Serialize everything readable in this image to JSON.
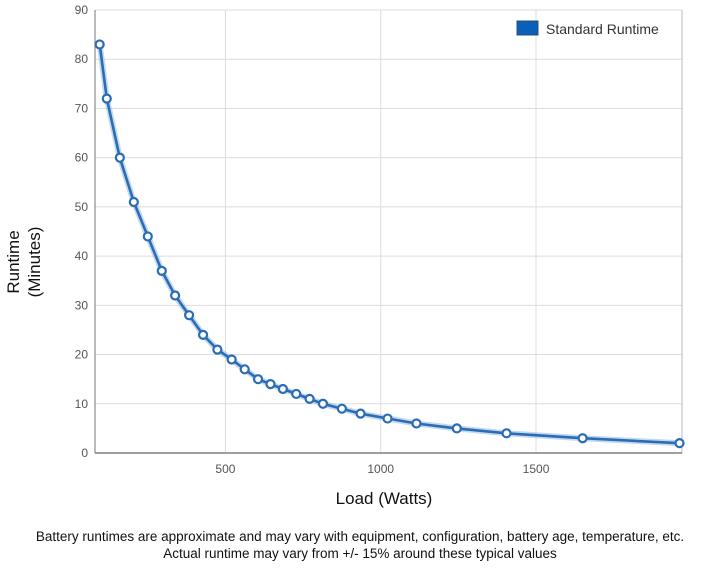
{
  "chart_data": {
    "type": "line",
    "title": "",
    "xlabel": "Load (Watts)",
    "ylabel_lines": [
      "Runtime",
      "(Minutes)"
    ],
    "xlim": [
      80,
      1970
    ],
    "ylim": [
      0,
      90
    ],
    "x_ticks": [
      500,
      1000,
      1500
    ],
    "y_ticks": [
      0,
      10,
      20,
      30,
      40,
      50,
      60,
      70,
      80,
      90
    ],
    "grid": true,
    "legend_position": "top-right",
    "series": [
      {
        "name": "Standard Runtime",
        "color": "#2a6db5",
        "points": [
          [
            95,
            83
          ],
          [
            118,
            72
          ],
          [
            160,
            60
          ],
          [
            205,
            51
          ],
          [
            250,
            44
          ],
          [
            295,
            37
          ],
          [
            338,
            32
          ],
          [
            383,
            28
          ],
          [
            428,
            24
          ],
          [
            474,
            21
          ],
          [
            520,
            19
          ],
          [
            562,
            17
          ],
          [
            605,
            15
          ],
          [
            645,
            14
          ],
          [
            685,
            13
          ],
          [
            728,
            12
          ],
          [
            771,
            11
          ],
          [
            814,
            10
          ],
          [
            875,
            9
          ],
          [
            935,
            8
          ],
          [
            1022,
            7
          ],
          [
            1115,
            6
          ],
          [
            1245,
            5
          ],
          [
            1405,
            4
          ],
          [
            1650,
            3
          ],
          [
            1962,
            2
          ]
        ]
      }
    ]
  },
  "caption": {
    "line1": "Battery runtimes are approximate and may vary with equipment, configuration, battery age, temperature, etc.",
    "line2": "Actual runtime may vary from +/- 15% around these typical values"
  }
}
